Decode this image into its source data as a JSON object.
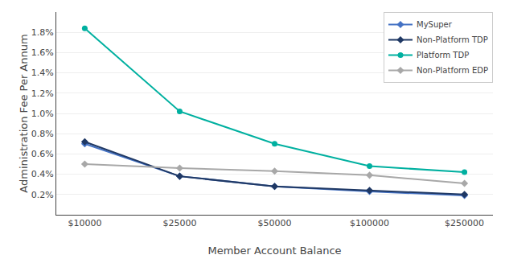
{
  "chart_data": {
    "type": "line",
    "categories": [
      "$10000",
      "$25000",
      "$50000",
      "$100000",
      "$250000"
    ],
    "series": [
      {
        "name": "MySuper",
        "color": "#4472C4",
        "marker": "diamond",
        "values": [
          0.7,
          0.38,
          0.28,
          0.23,
          0.19
        ]
      },
      {
        "name": "Non-Platform TDP",
        "color": "#1F3864",
        "marker": "diamond",
        "values": [
          0.72,
          0.38,
          0.28,
          0.24,
          0.2
        ]
      },
      {
        "name": "Platform TDP",
        "color": "#00B0A0",
        "marker": "circle",
        "values": [
          1.84,
          1.02,
          0.7,
          0.48,
          0.42
        ]
      },
      {
        "name": "Non-Platform EDP",
        "color": "#A8A8A8",
        "marker": "diamond",
        "values": [
          0.5,
          0.46,
          0.43,
          0.39,
          0.31
        ]
      }
    ],
    "xlabel": "Member Account Balance",
    "ylabel": "Administration Fee Per Annum",
    "ylim": [
      0.0,
      2.0
    ],
    "yticks": [
      {
        "value": 0.2,
        "label": "0.2%"
      },
      {
        "value": 0.4,
        "label": "0.4%"
      },
      {
        "value": 0.6,
        "label": "0.6%"
      },
      {
        "value": 0.8,
        "label": "0.8%"
      },
      {
        "value": 1.0,
        "label": "1.0%"
      },
      {
        "value": 1.2,
        "label": "1.2%"
      },
      {
        "value": 1.4,
        "label": "1.4%"
      },
      {
        "value": 1.6,
        "label": "1.6%"
      },
      {
        "value": 1.8,
        "label": "1.8%"
      }
    ],
    "grid": true,
    "legend": "upper right"
  }
}
